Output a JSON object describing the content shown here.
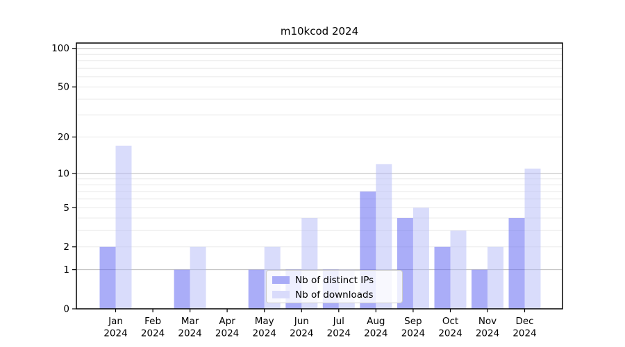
{
  "chart_data": {
    "type": "bar",
    "title": "m10kcod 2024",
    "months": [
      "Jan",
      "Feb",
      "Mar",
      "Apr",
      "May",
      "Jun",
      "Jul",
      "Aug",
      "Sep",
      "Oct",
      "Nov",
      "Dec"
    ],
    "year": "2024",
    "series": [
      {
        "name": "Nb of distinct IPs",
        "color": "#a9acf7",
        "fill": "rgba(100,105,242,0.55)",
        "values": [
          2,
          0,
          1,
          0,
          1,
          1,
          1,
          7,
          4,
          2,
          1,
          4
        ]
      },
      {
        "name": "Nb of downloads",
        "color": "#d9dbfb",
        "fill": "rgba(180,185,247,0.5)",
        "values": [
          17,
          0,
          2,
          0,
          2,
          4,
          1,
          12,
          5,
          3,
          2,
          11
        ]
      }
    ],
    "yscale": "log1p",
    "ylim": [
      0,
      110
    ],
    "yticks": [
      0,
      1,
      2,
      5,
      10,
      20,
      50,
      100
    ],
    "minor_yticks": [
      3,
      4,
      6,
      7,
      8,
      9,
      30,
      40,
      60,
      70,
      80,
      90
    ],
    "major_grid_values": [
      1,
      10,
      100
    ],
    "grid": "horizontal",
    "legend_position": "lower center",
    "xlabel": "",
    "ylabel": ""
  },
  "colors": {
    "major_grid": "#b9b9b9",
    "minor_grid": "#e9e9e9",
    "spine": "#000000",
    "background": "#ffffff"
  }
}
